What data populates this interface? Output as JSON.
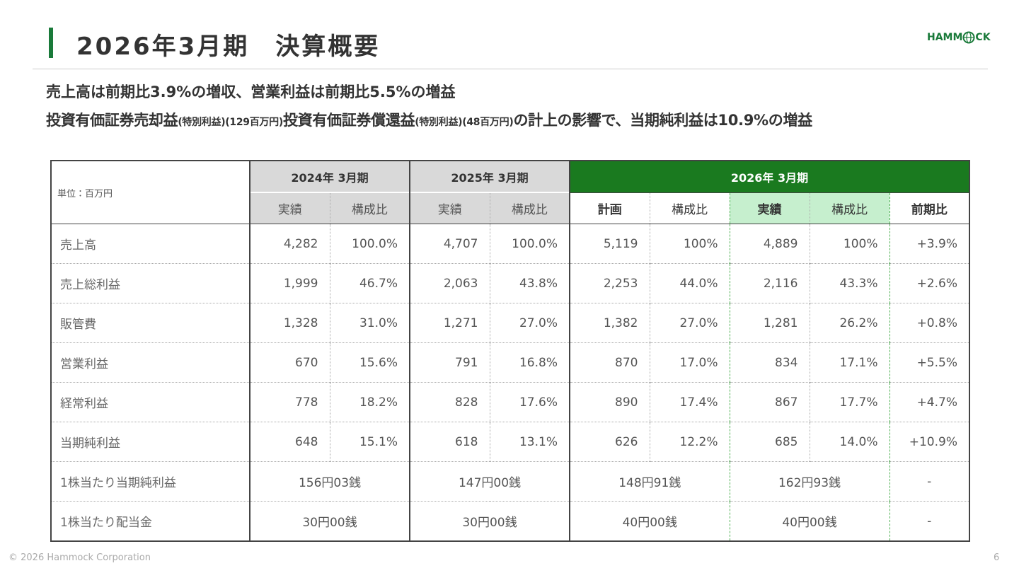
{
  "header": {
    "title": "2026年3月期　決算概要",
    "logo_left": "HAMM",
    "logo_right": "CK"
  },
  "summary": {
    "line1": "売上高は前期比3.9%の増収、営業利益は前期比5.5%の増益",
    "line2": [
      {
        "text": "投資有価証券売却益",
        "small": false
      },
      {
        "text": "(特別利益)(129百万円)",
        "small": true
      },
      {
        "text": "投資有価証券償還益",
        "small": false
      },
      {
        "text": "(特別利益)(48百万円)",
        "small": true
      },
      {
        "text": "の計上の影響で、当期純利益は10.9%の増益",
        "small": false
      }
    ]
  },
  "table": {
    "unit": "単位：百万円",
    "periods": [
      "2024年 3月期",
      "2025年 3月期",
      "2026年 3月期"
    ],
    "subheaders": [
      "実績",
      "構成比",
      "実績",
      "構成比",
      "計画",
      "構成比",
      "実績",
      "構成比",
      "前期比"
    ],
    "rows": [
      {
        "label": "売上高",
        "cells": [
          "4,282",
          "100.0%",
          "4,707",
          "100.0%",
          "5,119",
          "100%",
          "4,889",
          "100%",
          "+3.9%"
        ]
      },
      {
        "label": "売上総利益",
        "cells": [
          "1,999",
          "46.7%",
          "2,063",
          "43.8%",
          "2,253",
          "44.0%",
          "2,116",
          "43.3%",
          "+2.6%"
        ]
      },
      {
        "label": "販管費",
        "cells": [
          "1,328",
          "31.0%",
          "1,271",
          "27.0%",
          "1,382",
          "27.0%",
          "1,281",
          "26.2%",
          "+0.8%"
        ]
      },
      {
        "label": "営業利益",
        "cells": [
          "670",
          "15.6%",
          "791",
          "16.8%",
          "870",
          "17.0%",
          "834",
          "17.1%",
          "+5.5%"
        ]
      },
      {
        "label": "経常利益",
        "cells": [
          "778",
          "18.2%",
          "828",
          "17.6%",
          "890",
          "17.4%",
          "867",
          "17.7%",
          "+4.7%"
        ]
      },
      {
        "label": "当期純利益",
        "cells": [
          "648",
          "15.1%",
          "618",
          "13.1%",
          "626",
          "12.2%",
          "685",
          "14.0%",
          "+10.9%"
        ]
      },
      {
        "label": "1株当たり当期純利益",
        "cells": [
          "156円03銭",
          "147円00銭",
          "148円91銭",
          "162円93銭",
          "-"
        ]
      },
      {
        "label": "1株当たり配当金",
        "cells": [
          "30円00銭",
          "30円00銭",
          "40円00銭",
          "40円00銭",
          "-"
        ]
      }
    ]
  },
  "footer": {
    "copyright": "© 2026 Hammock Corporation",
    "page": "6"
  }
}
